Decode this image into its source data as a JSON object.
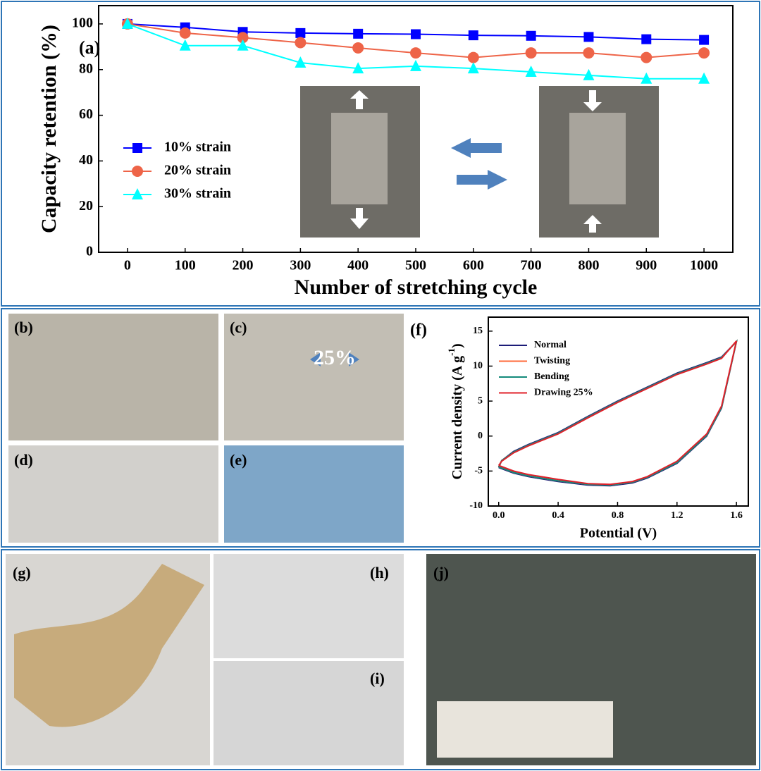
{
  "chart_data": [
    {
      "type": "line",
      "panel_label": "(a)",
      "x_label": "Number of stretching cycle",
      "y_label": "Capacity retention (%)",
      "x": [
        0,
        100,
        200,
        300,
        400,
        500,
        600,
        700,
        800,
        900,
        1000
      ],
      "xlim": [
        -50,
        1050
      ],
      "xticks": [
        0,
        100,
        200,
        300,
        400,
        500,
        600,
        700,
        800,
        900,
        1000
      ],
      "ylim": [
        0,
        108
      ],
      "yticks": [
        0,
        20,
        40,
        60,
        80,
        100
      ],
      "series": [
        {
          "name": "10% strain",
          "color": "#0000ff",
          "marker": "square",
          "values": [
            100,
            98.5,
            96.5,
            96,
            95.7,
            95.5,
            95,
            94.8,
            94.3,
            93.3,
            93
          ]
        },
        {
          "name": "20% strain",
          "color": "#ee6448",
          "marker": "circle",
          "values": [
            100,
            96,
            94,
            91.8,
            89.5,
            87.3,
            85.3,
            87.3,
            87.3,
            85.3,
            87.3
          ]
        },
        {
          "name": "30% strain",
          "color": "#00ffff",
          "marker": "triangle",
          "values": [
            100,
            90.5,
            90.5,
            83,
            80.5,
            81.5,
            80.5,
            79,
            77.5,
            76,
            76
          ]
        }
      ]
    },
    {
      "type": "line",
      "panel_label": "(f)",
      "x_label": "Potential (V)",
      "y_label": "Current density (A g",
      "y_label_sup": "-1",
      "y_label_end": ")",
      "x": [
        0,
        0.1,
        0.2,
        0.4,
        0.6,
        0.75,
        0.9,
        1.0,
        1.2,
        1.4,
        1.5,
        1.6,
        1.5,
        1.4,
        1.2,
        1.0,
        0.8,
        0.6,
        0.4,
        0.2,
        0.1,
        0.02,
        0
      ],
      "xlim": [
        -0.07,
        1.68
      ],
      "xticks": [
        {
          "value": 0,
          "label": "0.0"
        },
        0.4,
        0.8,
        1.2,
        1.6
      ],
      "ylim": [
        -10,
        17
      ],
      "yticks": [
        -10,
        -5,
        0,
        5,
        10,
        15
      ],
      "series": [
        {
          "name": "Normal",
          "color": "#1c1c78",
          "values": [
            -4.5,
            -5.3,
            -5.8,
            -6.5,
            -7,
            -7.1,
            -6.7,
            -6,
            -3.9,
            0,
            4,
            13.5,
            11.3,
            10.5,
            9,
            7,
            5,
            2.8,
            0.5,
            -1.2,
            -2.2,
            -3.5,
            -4.5
          ]
        },
        {
          "name": "Twisting",
          "color": "#ff6a3a",
          "values": [
            -4.4,
            -5.2,
            -5.7,
            -6.4,
            -6.9,
            -7,
            -6.6,
            -5.9,
            -3.8,
            0.1,
            4.1,
            13.5,
            11.2,
            10.4,
            8.9,
            6.9,
            4.9,
            2.7,
            0.4,
            -1.3,
            -2.3,
            -3.5,
            -4.4
          ]
        },
        {
          "name": "Bending",
          "color": "#138a7a",
          "values": [
            -4.4,
            -5.2,
            -5.7,
            -6.4,
            -6.9,
            -7,
            -6.6,
            -5.9,
            -3.8,
            0.1,
            4.1,
            13.5,
            11.2,
            10.4,
            8.9,
            6.9,
            4.9,
            2.7,
            0.4,
            -1.3,
            -2.3,
            -3.5,
            -4.4
          ]
        },
        {
          "name": "Drawing 25%",
          "color": "#e0202a",
          "values": [
            -4.2,
            -5,
            -5.5,
            -6.2,
            -6.8,
            -6.9,
            -6.5,
            -5.8,
            -3.6,
            0.3,
            4.3,
            13.6,
            11.1,
            10.3,
            8.8,
            6.8,
            4.8,
            2.6,
            0.3,
            -1.4,
            -2.4,
            -3.6,
            -4.2
          ]
        }
      ]
    }
  ],
  "photos": {
    "b": "(b)",
    "c": "(c)",
    "c_overlay": "25%",
    "d": "(d)",
    "e": "(e)",
    "g": "(g)",
    "h": "(h)",
    "i": "(i)",
    "j": "(j)"
  }
}
